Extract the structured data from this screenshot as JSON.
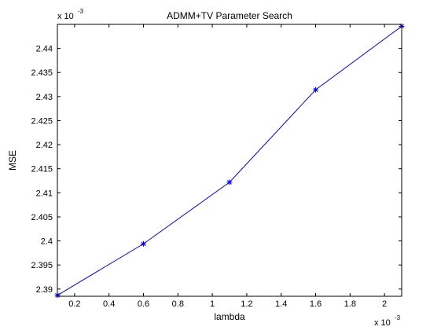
{
  "chart_data": {
    "type": "line",
    "title": "ADMM+TV Parameter Search",
    "xlabel": "lambda",
    "ylabel": "MSE",
    "x_exponent_base": "x 10",
    "x_exponent_power": "-3",
    "y_exponent_base": "x 10",
    "y_exponent_power": "-3",
    "x": [
      0.0001,
      0.0006,
      0.0011,
      0.0016,
      0.0021
    ],
    "series": [
      {
        "values": [
          0.0023887,
          0.0023994,
          0.0024122,
          0.0024314,
          0.0024446
        ],
        "color": "#0000ff",
        "marker": "asterisk"
      }
    ],
    "xlim": [
      0.0001,
      0.0021
    ],
    "ylim": [
      0.0023885,
      0.002445
    ],
    "xticks": [
      0.0002,
      0.0004,
      0.0006,
      0.0008,
      0.001,
      0.0012,
      0.0014,
      0.0016,
      0.0018,
      0.002
    ],
    "xtick_labels": [
      "0.2",
      "0.4",
      "0.6",
      "0.8",
      "1",
      "1.2",
      "1.4",
      "1.6",
      "1.8",
      "2"
    ],
    "yticks": [
      0.00239,
      0.002395,
      0.0024,
      0.002405,
      0.00241,
      0.002415,
      0.00242,
      0.002425,
      0.00243,
      0.002435,
      0.00244
    ],
    "ytick_labels": [
      "2.39",
      "2.395",
      "2.4",
      "2.405",
      "2.41",
      "2.415",
      "2.42",
      "2.425",
      "2.43",
      "2.435",
      "2.44"
    ],
    "grid": false,
    "legend": "none"
  }
}
